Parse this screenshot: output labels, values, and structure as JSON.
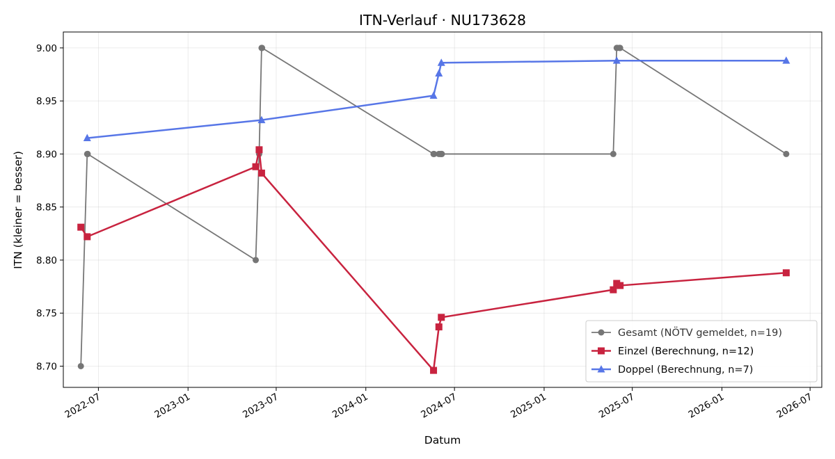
{
  "chart_data": {
    "type": "line",
    "title": "ITN-Verlauf · NU173628",
    "xlabel": "Datum",
    "ylabel": "ITN  (kleiner = besser)",
    "xlim": [
      "2022-04-20",
      "2026-07-25"
    ],
    "ylim": [
      8.68,
      9.015
    ],
    "x_ticks": [
      "2022-07-01",
      "2023-01-01",
      "2023-07-01",
      "2024-01-01",
      "2024-07-01",
      "2025-01-01",
      "2025-07-01",
      "2026-01-01",
      "2026-07-01"
    ],
    "x_tick_labels": [
      "2022-07",
      "2023-01",
      "2023-07",
      "2024-01",
      "2024-07",
      "2025-01",
      "2025-07",
      "2026-01",
      "2026-07"
    ],
    "y_ticks": [
      8.7,
      8.75,
      8.8,
      8.85,
      8.9,
      8.95,
      9.0
    ],
    "y_tick_labels": [
      "8.70",
      "8.75",
      "8.80",
      "8.85",
      "8.90",
      "8.95",
      "9.00"
    ],
    "grid": true,
    "legend_position": "bottom-right",
    "series": [
      {
        "name": "Gesamt (NÖTV gemeldet, n=19)",
        "color": "#555555",
        "marker": "circle",
        "points": [
          {
            "x": "2022-05-26",
            "y": 8.7
          },
          {
            "x": "2022-06-08",
            "y": 8.9
          },
          {
            "x": "2022-06-09",
            "y": 8.9
          },
          {
            "x": "2023-05-20",
            "y": 8.8
          },
          {
            "x": "2023-05-27",
            "y": 8.9
          },
          {
            "x": "2023-06-01",
            "y": 9.0
          },
          {
            "x": "2023-06-02",
            "y": 9.0
          },
          {
            "x": "2024-05-19",
            "y": 8.9
          },
          {
            "x": "2024-05-20",
            "y": 8.9
          },
          {
            "x": "2024-05-30",
            "y": 8.9
          },
          {
            "x": "2024-06-02",
            "y": 8.9
          },
          {
            "x": "2024-06-04",
            "y": 8.9
          },
          {
            "x": "2024-06-05",
            "y": 8.9
          },
          {
            "x": "2025-05-23",
            "y": 8.9
          },
          {
            "x": "2025-05-30",
            "y": 9.0
          },
          {
            "x": "2025-05-31",
            "y": 9.0
          },
          {
            "x": "2025-06-05",
            "y": 9.0
          },
          {
            "x": "2025-06-06",
            "y": 9.0
          },
          {
            "x": "2026-05-13",
            "y": 8.9
          }
        ]
      },
      {
        "name": "Einzel (Berechnung, n=12)",
        "color": "#c8233f",
        "marker": "square",
        "points": [
          {
            "x": "2022-05-26",
            "y": 8.831
          },
          {
            "x": "2022-06-08",
            "y": 8.822
          },
          {
            "x": "2023-05-20",
            "y": 8.888
          },
          {
            "x": "2023-05-27",
            "y": 8.904
          },
          {
            "x": "2023-06-01",
            "y": 8.882
          },
          {
            "x": "2024-05-19",
            "y": 8.696
          },
          {
            "x": "2024-05-30",
            "y": 8.737
          },
          {
            "x": "2024-06-04",
            "y": 8.746
          },
          {
            "x": "2025-05-23",
            "y": 8.772
          },
          {
            "x": "2025-05-30",
            "y": 8.778
          },
          {
            "x": "2025-06-06",
            "y": 8.776
          },
          {
            "x": "2026-05-13",
            "y": 8.788
          }
        ]
      },
      {
        "name": "Doppel (Berechnung, n=7)",
        "color": "#4f6fe6",
        "marker": "triangle",
        "points": [
          {
            "x": "2022-06-08",
            "y": 8.915
          },
          {
            "x": "2023-06-01",
            "y": 8.932
          },
          {
            "x": "2024-05-19",
            "y": 8.955
          },
          {
            "x": "2024-05-30",
            "y": 8.976
          },
          {
            "x": "2024-06-04",
            "y": 8.986
          },
          {
            "x": "2025-05-30",
            "y": 8.988
          },
          {
            "x": "2026-05-13",
            "y": 8.988
          }
        ]
      }
    ]
  }
}
